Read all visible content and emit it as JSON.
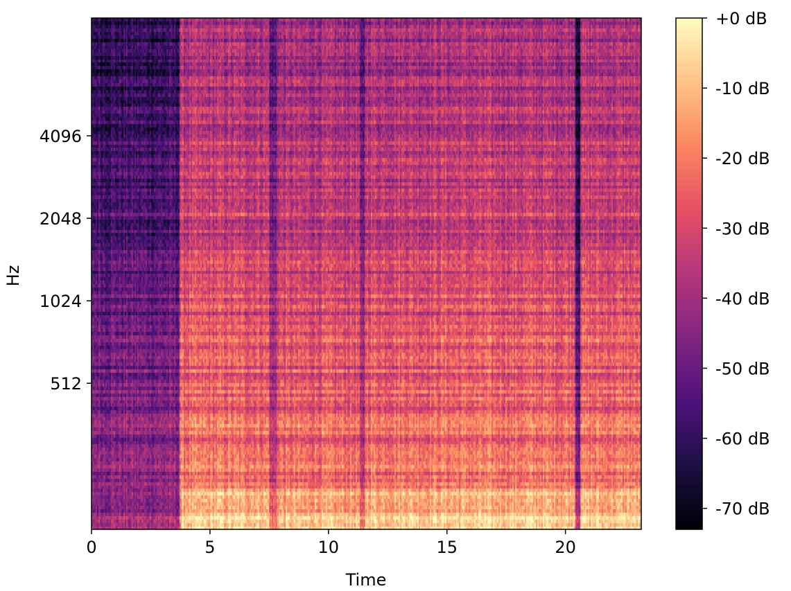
{
  "chart_data": {
    "type": "heatmap",
    "title": "",
    "xlabel": "Time",
    "ylabel": "Hz",
    "x_range": [
      0,
      23.2
    ],
    "x_ticks": [
      0,
      5,
      10,
      15,
      20
    ],
    "y_scale": "log2",
    "y_range": [
      150,
      11025
    ],
    "y_ticks": [
      512,
      1024,
      2048,
      4096
    ],
    "colorbar": {
      "colormap": "magma",
      "range": [
        -73,
        0
      ],
      "ticks": [
        0,
        -10,
        -20,
        -30,
        -40,
        -50,
        -60,
        -70
      ],
      "tick_labels": [
        "+0 dB",
        "-10 dB",
        "-20 dB",
        "-30 dB",
        "-40 dB",
        "-50 dB",
        "-60 dB",
        "-70 dB"
      ]
    },
    "segments": [
      {
        "t_start": 0,
        "t_end": 3.7,
        "level_db": -52
      },
      {
        "t_start": 3.7,
        "t_end": 7.5,
        "level_db": -30
      },
      {
        "t_start": 7.5,
        "t_end": 7.8,
        "level_db": -45
      },
      {
        "t_start": 7.8,
        "t_end": 11.3,
        "level_db": -32
      },
      {
        "t_start": 11.3,
        "t_end": 11.5,
        "level_db": -48
      },
      {
        "t_start": 11.5,
        "t_end": 20.4,
        "level_db": -30
      },
      {
        "t_start": 20.4,
        "t_end": 20.6,
        "level_db": -55
      },
      {
        "t_start": 20.6,
        "t_end": 23.2,
        "level_db": -30
      }
    ],
    "grid": false,
    "legend": "colorbar-right"
  },
  "colors": {
    "magma": [
      "#000004",
      "#1c1044",
      "#4f127b",
      "#812581",
      "#b5367a",
      "#e55064",
      "#fb8761",
      "#fec287",
      "#fcfdbf"
    ]
  }
}
